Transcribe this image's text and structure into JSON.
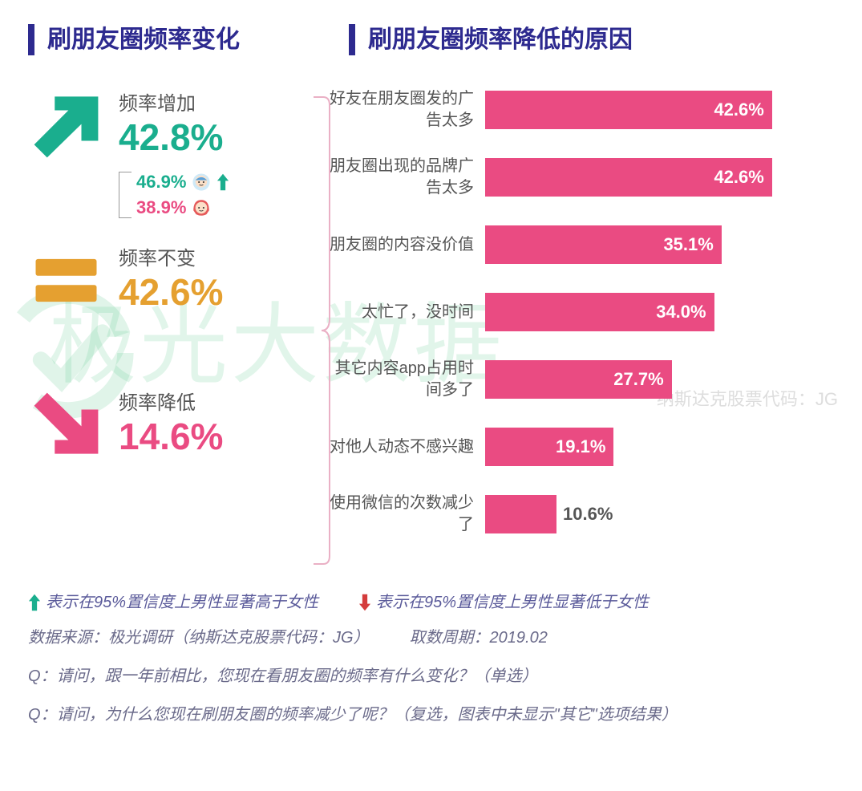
{
  "titles": {
    "left": "刷朋友圈频率变化",
    "right": "刷朋友圈频率降低的原因",
    "title_color": "#2d2a8f",
    "title_fontsize": 30
  },
  "watermark": {
    "text": "极光大数据",
    "sub": "纳斯达克股票代码：JG",
    "color_rgba": "rgba(90,200,140,0.18)"
  },
  "left_stats": {
    "increase": {
      "label": "频率增加",
      "value": "42.8%",
      "icon": "arrow-up-right",
      "icon_color": "#1aae8e",
      "value_color": "#1aae8e",
      "breakdown": {
        "male": {
          "value": "46.9%",
          "icon": "male-face",
          "arrow": "up",
          "color": "#1aae8e"
        },
        "female": {
          "value": "38.9%",
          "icon": "female-face",
          "arrow": null,
          "color": "#ea4b82"
        }
      }
    },
    "same": {
      "label": "频率不变",
      "value": "42.6%",
      "icon": "equals",
      "icon_color": "#e5a030",
      "value_color": "#e5a030"
    },
    "decrease": {
      "label": "频率降低",
      "value": "14.6%",
      "icon": "arrow-down-right",
      "icon_color": "#ea4b82",
      "value_color": "#ea4b82"
    }
  },
  "bar_chart": {
    "type": "bar",
    "orientation": "horizontal",
    "bar_color": "#ea4b82",
    "label_color": "#555555",
    "label_fontsize": 20,
    "pct_fontsize": 22,
    "pct_color_inside": "#ffffff",
    "pct_color_outside": "#555555",
    "max_value": 50,
    "bars": [
      {
        "label": "好友在朋友圈发的广告太多",
        "value": 42.6,
        "display": "42.6%",
        "pct_inside": true
      },
      {
        "label": "朋友圈出现的品牌广告太多",
        "value": 42.6,
        "display": "42.6%",
        "pct_inside": true
      },
      {
        "label": "朋友圈的内容没价值",
        "value": 35.1,
        "display": "35.1%",
        "pct_inside": true
      },
      {
        "label": "太忙了，没时间",
        "value": 34.0,
        "display": "34.0%",
        "pct_inside": true
      },
      {
        "label": "其它内容app占用时间多了",
        "value": 27.7,
        "display": "27.7%",
        "pct_inside": true
      },
      {
        "label": "对他人动态不感兴趣",
        "value": 19.1,
        "display": "19.1%",
        "pct_inside": true
      },
      {
        "label": "使用微信的次数减少了",
        "value": 10.6,
        "display": "10.6%",
        "pct_inside": false
      }
    ]
  },
  "footer": {
    "legend_up": "表示在95%置信度上男性显著高于女性",
    "legend_down": "表示在95%置信度上男性显著低于女性",
    "source": "数据来源：极光调研（纳斯达克股票代码：JG）",
    "period": "取数周期：2019.02",
    "q1": "Q：请问，跟一年前相比，您现在看朋友圈的频率有什么变化？（单选）",
    "q2": "Q：请问，为什么您现在刷朋友圈的频率减少了呢？（复选，图表中未显示\"其它\"选项结果）",
    "legend_up_color": "#1aae8e",
    "legend_down_color": "#d43c3c"
  },
  "colors": {
    "green": "#1aae8e",
    "orange": "#e5a030",
    "pink": "#ea4b82",
    "title": "#2d2a8f",
    "text": "#555555",
    "background": "#ffffff"
  }
}
